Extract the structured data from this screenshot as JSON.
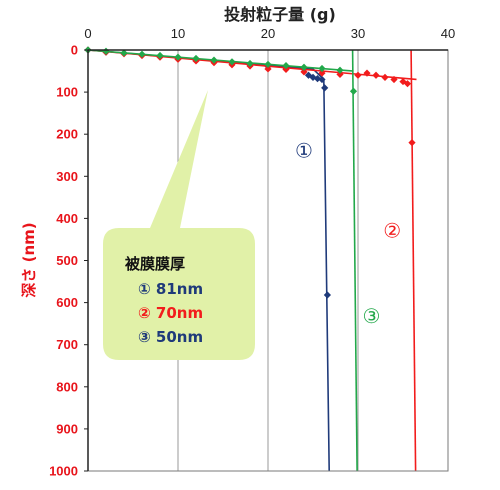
{
  "chart_data": {
    "type": "scatter",
    "xlabel": "投射粒子量 (g)",
    "ylabel": "深さ (nm)",
    "xlim": [
      0,
      40
    ],
    "ylim": [
      0,
      1000
    ],
    "y_inverted": true,
    "x_axis_position": "top",
    "x_ticks": [
      0,
      10,
      20,
      30,
      40
    ],
    "y_ticks": [
      0,
      100,
      200,
      300,
      400,
      500,
      600,
      700,
      800,
      900,
      1000
    ],
    "grid": "vertical",
    "series": [
      {
        "name": "①",
        "color": "#1f3a7a",
        "marker": "diamond",
        "points": [
          [
            0,
            0
          ],
          [
            2,
            5
          ],
          [
            4,
            8
          ],
          [
            6,
            12
          ],
          [
            8,
            16
          ],
          [
            10,
            20
          ],
          [
            12,
            24
          ],
          [
            14,
            27
          ],
          [
            16,
            31
          ],
          [
            18,
            35
          ],
          [
            20,
            39
          ],
          [
            22,
            43
          ],
          [
            24,
            45
          ],
          [
            24.5,
            60
          ],
          [
            25,
            65
          ],
          [
            25.5,
            68
          ],
          [
            26,
            70
          ],
          [
            26.3,
            90
          ],
          [
            26.6,
            582
          ]
        ],
        "fit_line": [
          [
            0,
            0
          ],
          [
            25,
            45
          ],
          [
            26.2,
            70
          ],
          [
            26.8,
            1000
          ]
        ]
      },
      {
        "name": "②",
        "color": "#f21c1c",
        "marker": "diamond",
        "points": [
          [
            0,
            0
          ],
          [
            2,
            5
          ],
          [
            4,
            9
          ],
          [
            6,
            13
          ],
          [
            8,
            17
          ],
          [
            10,
            22
          ],
          [
            12,
            26
          ],
          [
            14,
            30
          ],
          [
            16,
            35
          ],
          [
            18,
            38
          ],
          [
            20,
            45
          ],
          [
            22,
            46
          ],
          [
            24,
            52
          ],
          [
            26,
            55
          ],
          [
            28,
            58
          ],
          [
            30,
            60
          ],
          [
            31,
            55
          ],
          [
            32,
            60
          ],
          [
            33,
            65
          ],
          [
            34,
            70
          ],
          [
            35,
            75
          ],
          [
            35.5,
            80
          ],
          [
            36,
            220
          ]
        ],
        "fit_line": [
          [
            0,
            0
          ],
          [
            36.5,
            70
          ]
        ],
        "fit_line_vertical": [
          [
            35.9,
            0
          ],
          [
            36.4,
            1000
          ]
        ]
      },
      {
        "name": "③",
        "color": "#22a84a",
        "marker": "diamond",
        "points": [
          [
            0,
            0
          ],
          [
            2,
            3
          ],
          [
            4,
            7
          ],
          [
            6,
            10
          ],
          [
            8,
            13
          ],
          [
            10,
            17
          ],
          [
            12,
            20
          ],
          [
            14,
            24
          ],
          [
            16,
            28
          ],
          [
            18,
            32
          ],
          [
            20,
            34
          ],
          [
            22,
            37
          ],
          [
            24,
            41
          ],
          [
            26,
            44
          ],
          [
            28,
            48
          ],
          [
            29.5,
            98
          ]
        ],
        "fit_line": [
          [
            0,
            0
          ],
          [
            29.5,
            50
          ]
        ],
        "fit_line_vertical": [
          [
            29.4,
            0
          ],
          [
            29.9,
            1000
          ]
        ]
      }
    ],
    "curve_labels": [
      {
        "text": "①",
        "x": 24,
        "y": 255,
        "color": "#1f3a7a"
      },
      {
        "text": "②",
        "x": 33.8,
        "y": 445,
        "color": "#f21c1c"
      },
      {
        "text": "③",
        "x": 31.5,
        "y": 648,
        "color": "#22a84a"
      }
    ],
    "callout": {
      "title": "被膜膜厚",
      "items": [
        {
          "text": "① 81nm",
          "color": "#1f3a7a"
        },
        {
          "text": "② 70nm",
          "color": "#f21c1c"
        },
        {
          "text": "③ 50nm",
          "color": "#1f3a7a"
        }
      ],
      "fill": "#e1f1a8"
    }
  }
}
